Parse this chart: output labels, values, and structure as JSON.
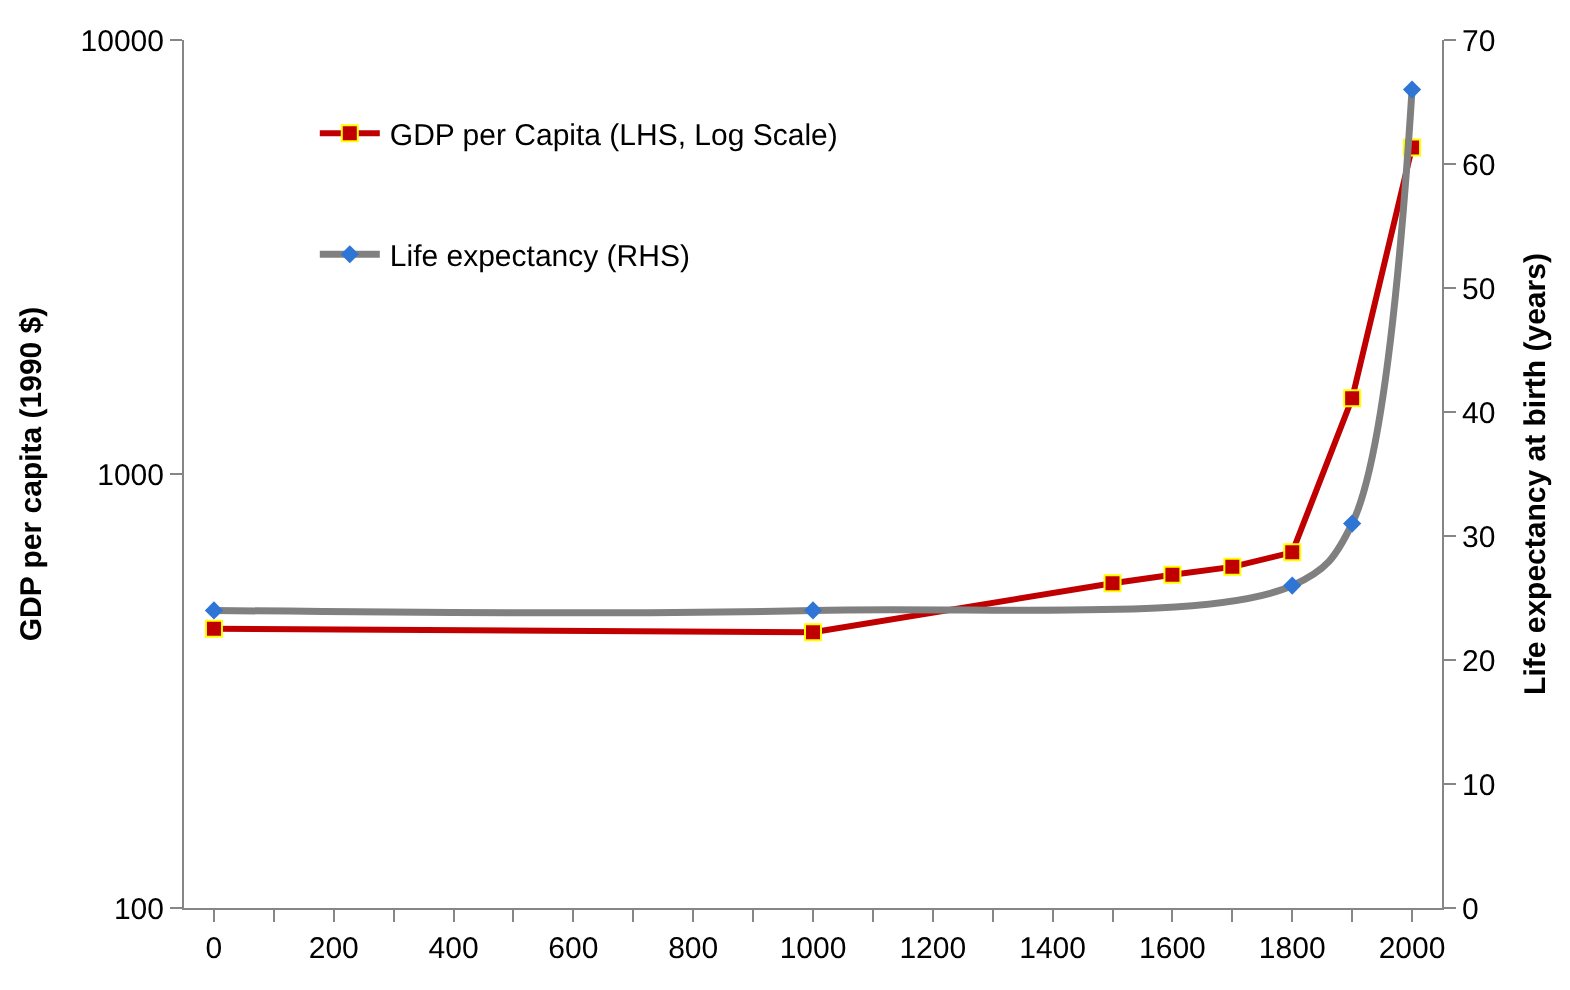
{
  "chart_data": {
    "type": "line",
    "ylabel": "GDP per capita (1990 $)",
    "y2label": "Life expectancy at birth (years)",
    "xlim": [
      -50,
      2050
    ],
    "xticks": [
      0,
      200,
      400,
      600,
      800,
      1000,
      1200,
      1400,
      1600,
      1800,
      2000
    ],
    "ylim": [
      100,
      10000
    ],
    "yticks": [
      100,
      1000,
      10000
    ],
    "log": "y",
    "y2lim": [
      0,
      70
    ],
    "y2ticks": [
      0,
      10,
      20,
      30,
      40,
      50,
      60,
      70
    ],
    "legend": "top left",
    "series": [
      {
        "name": "GDP per Capita (LHS, Log Scale)",
        "color": "#c00000",
        "marker": "square",
        "x": [
          0,
          1000,
          1500,
          1600,
          1700,
          1800,
          1900,
          2000
        ],
        "values": [
          440,
          432,
          560,
          586,
          611,
          660,
          1494,
          5650
        ]
      },
      {
        "name": "Life expectancy (RHS)",
        "color": "#808080",
        "marker": "diamond",
        "axis": "y2",
        "x": [
          0,
          1000,
          1800,
          1900,
          2000
        ],
        "values": [
          24,
          24,
          26,
          31,
          66
        ]
      }
    ]
  }
}
